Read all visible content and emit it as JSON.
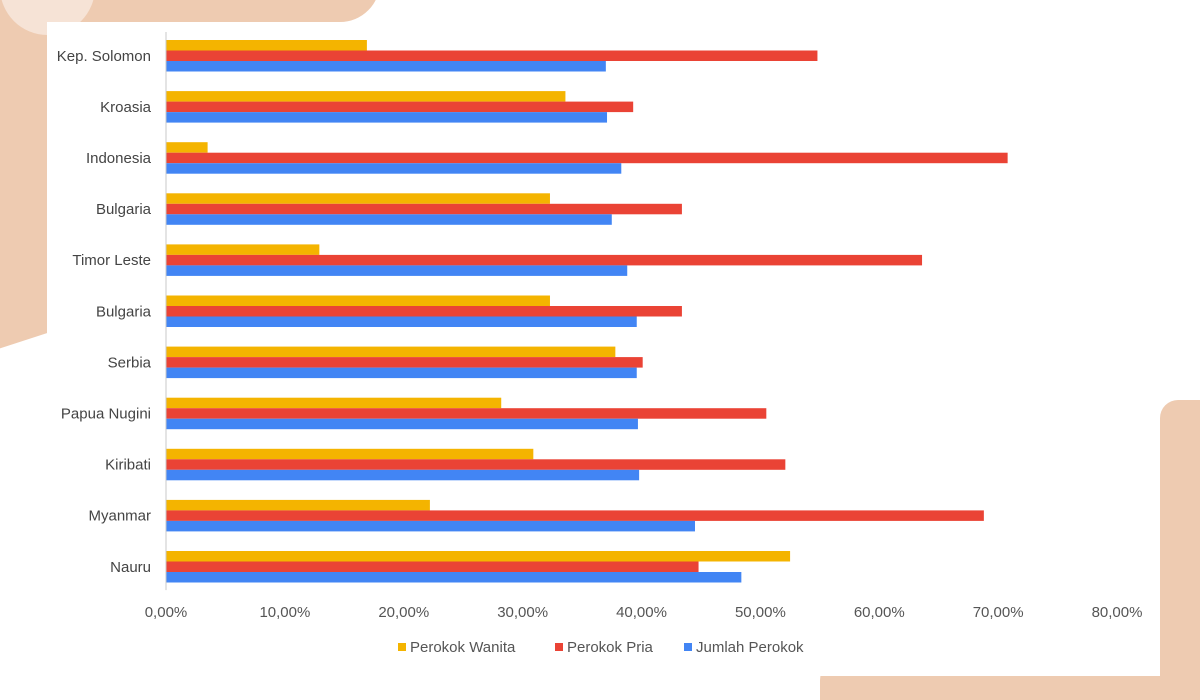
{
  "chart_data": {
    "type": "bar",
    "orientation": "horizontal",
    "title": "",
    "xlabel": "",
    "ylabel": "",
    "categories": [
      "Kep. Solomon",
      "Kroasia",
      "Indonesia",
      "Bulgaria",
      "Timor Leste",
      "Bulgaria",
      "Serbia",
      "Papua Nugini",
      "Kiribati",
      "Myanmar",
      "Nauru"
    ],
    "series": [
      {
        "name": "Perokok Wanita",
        "color": "#F4B400",
        "values": [
          16.9,
          33.6,
          3.5,
          32.3,
          12.9,
          32.3,
          37.8,
          28.2,
          30.9,
          22.2,
          52.5
        ]
      },
      {
        "name": "Perokok Pria",
        "color": "#EA4335",
        "values": [
          54.8,
          39.3,
          70.8,
          43.4,
          63.6,
          43.4,
          40.1,
          50.5,
          52.1,
          68.8,
          44.8
        ]
      },
      {
        "name": "Jumlah Perokok",
        "color": "#4285F4",
        "values": [
          37.0,
          37.1,
          38.3,
          37.5,
          38.8,
          39.6,
          39.6,
          39.7,
          39.8,
          44.5,
          48.4
        ]
      }
    ],
    "xlim": [
      0,
      80
    ],
    "xticks": [
      "0,00%",
      "10,00%",
      "20,00%",
      "30,00%",
      "40,00%",
      "50,00%",
      "60,00%",
      "70,00%",
      "80,00%"
    ],
    "grid": false,
    "legend_position": "bottom"
  }
}
